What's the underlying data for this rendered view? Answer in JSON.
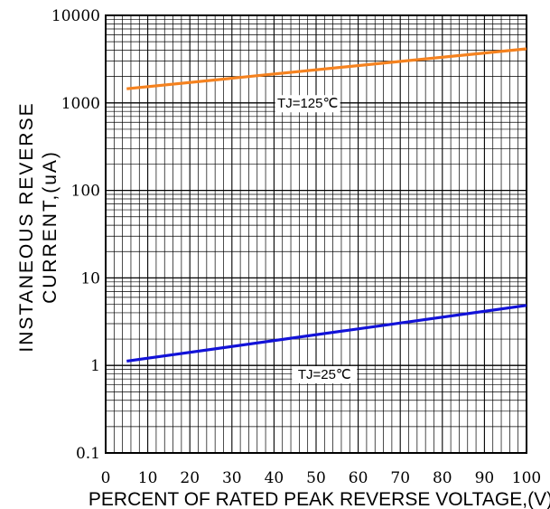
{
  "chart_data": {
    "type": "line",
    "xlabel": "PERCENT OF RATED PEAK REVERSE VOLTAGE,(V)",
    "ylabel_lines": [
      "INSTANEOUS REVERSE",
      "CURRENT,(uA)"
    ],
    "x_ticks": [
      "0",
      "10",
      "20",
      "30",
      "40",
      "50",
      "60",
      "70",
      "80",
      "90",
      "100"
    ],
    "y_ticks": [
      "0.1",
      "1",
      "10",
      "100",
      "1000",
      "10000"
    ],
    "xlim": [
      0,
      100
    ],
    "ylim": [
      0.1,
      10000
    ],
    "y_scale": "log",
    "grid": true,
    "series": [
      {
        "name": "TJ=125℃",
        "color": "#f5821f",
        "x": [
          5,
          100
        ],
        "y": [
          1450,
          4150
        ]
      },
      {
        "name": "TJ=25℃",
        "color": "#1212d8",
        "x": [
          5,
          100
        ],
        "y": [
          1.12,
          4.85
        ]
      }
    ]
  }
}
